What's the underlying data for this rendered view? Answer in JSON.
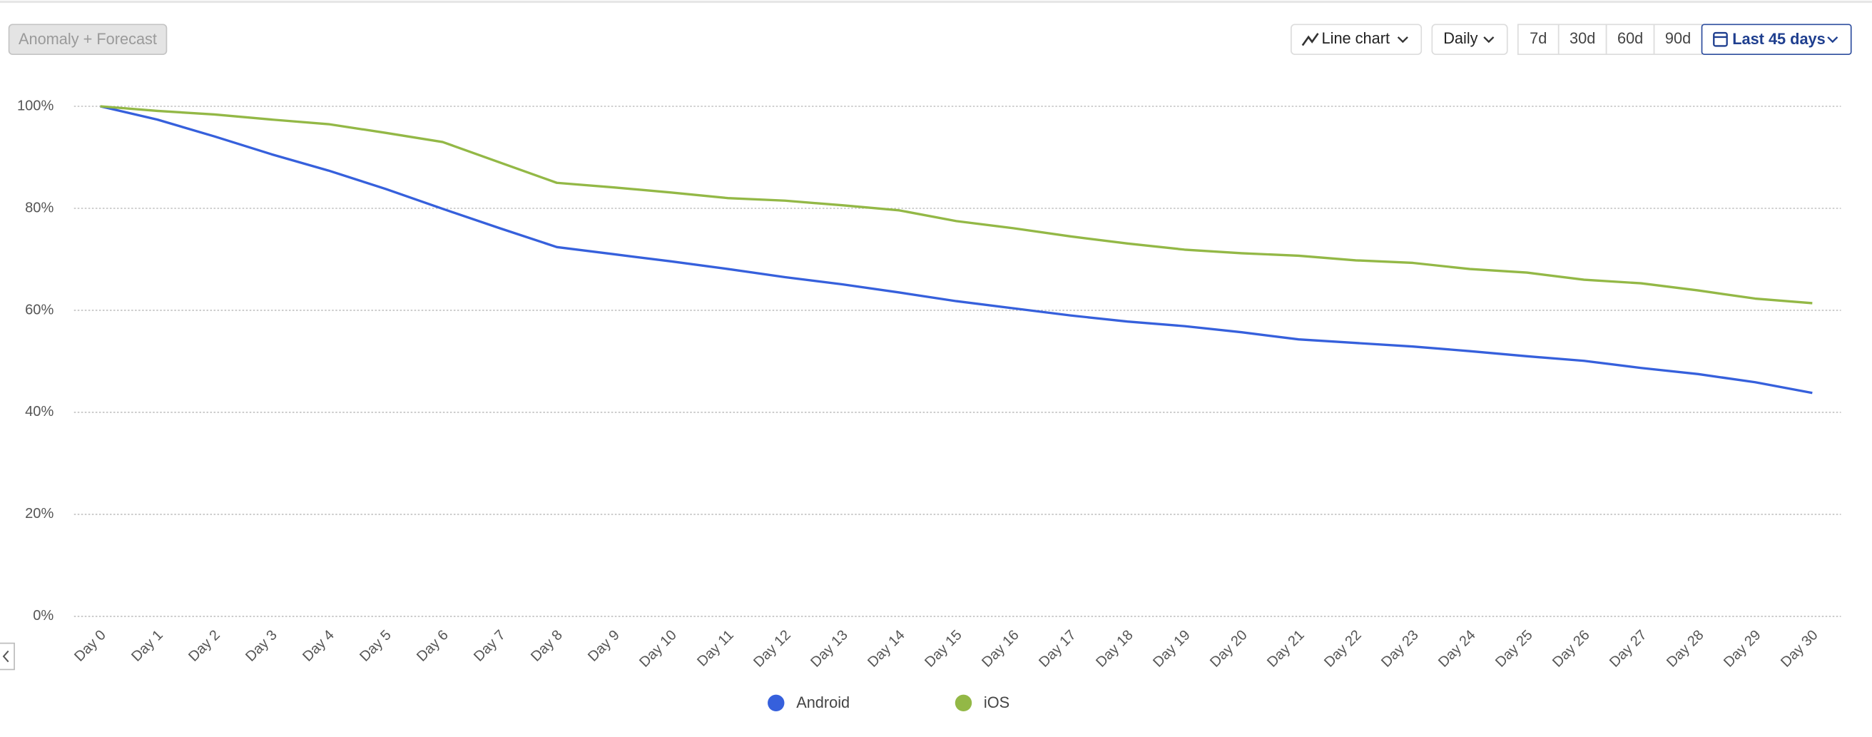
{
  "toolbar": {
    "anomaly_button": "Anomaly + Forecast",
    "chart_type_button": "Line chart",
    "interval_button": "Daily",
    "range_buttons": [
      "7d",
      "30d",
      "60d",
      "90d"
    ],
    "date_range_button": "Last 45 days"
  },
  "chart_data": {
    "type": "line",
    "categories": [
      "Day 0",
      "Day 1",
      "Day 2",
      "Day 3",
      "Day 4",
      "Day 5",
      "Day 6",
      "Day 7",
      "Day 8",
      "Day 9",
      "Day 10",
      "Day 11",
      "Day 12",
      "Day 13",
      "Day 14",
      "Day 15",
      "Day 16",
      "Day 17",
      "Day 18",
      "Day 19",
      "Day 20",
      "Day 21",
      "Day 22",
      "Day 23",
      "Day 24",
      "Day 25",
      "Day 26",
      "Day 27",
      "Day 28",
      "Day 29",
      "Day 30"
    ],
    "series": [
      {
        "name": "Android",
        "color": "#3660dc",
        "values": [
          100,
          97.4,
          94.1,
          90.6,
          87.4,
          83.8,
          79.9,
          76.1,
          72.4,
          71,
          69.6,
          68.1,
          66.5,
          65.1,
          63.5,
          61.8,
          60.4,
          59,
          57.8,
          56.9,
          55.7,
          54.3,
          53.6,
          52.9,
          52,
          51,
          50.1,
          48.7,
          47.5,
          45.9,
          43.8
        ]
      },
      {
        "name": "iOS",
        "color": "#93b846",
        "values": [
          100,
          99.1,
          98.4,
          97.4,
          96.5,
          94.8,
          93,
          89,
          85,
          84.1,
          83.1,
          82,
          81.5,
          80.6,
          79.6,
          77.5,
          76.1,
          74.5,
          73.1,
          71.9,
          71.2,
          70.7,
          69.8,
          69.3,
          68.1,
          67.4,
          66,
          65.3,
          63.9,
          62.3,
          61.4
        ]
      }
    ],
    "ylim": [
      0,
      100
    ],
    "yticks": [
      {
        "value": 0,
        "label": "0%"
      },
      {
        "value": 20,
        "label": "20%"
      },
      {
        "value": 40,
        "label": "40%"
      },
      {
        "value": 60,
        "label": "60%"
      },
      {
        "value": 80,
        "label": "80%"
      },
      {
        "value": 100,
        "label": "100%"
      }
    ],
    "grid": true,
    "legend": "bottom"
  }
}
